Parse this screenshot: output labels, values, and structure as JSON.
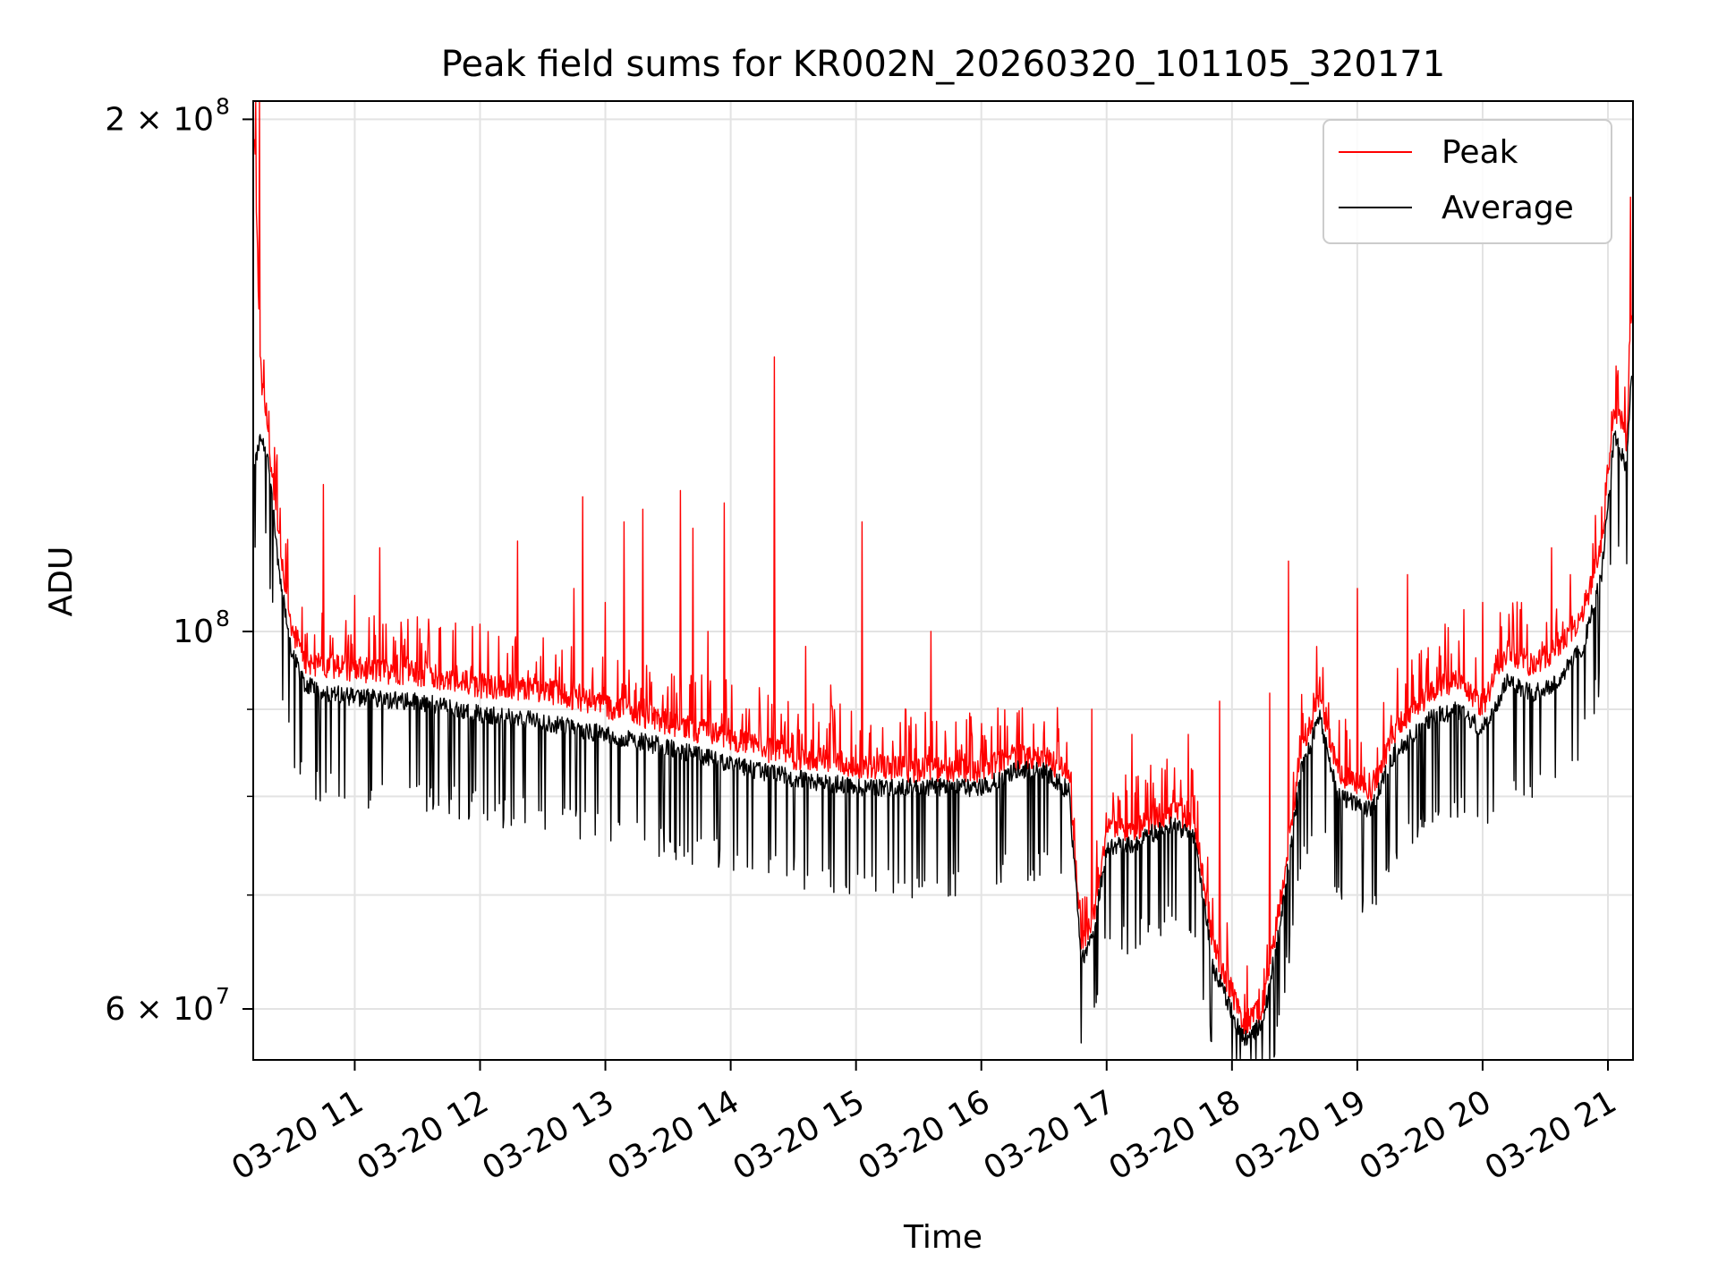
{
  "chart_data": {
    "type": "line",
    "title": "Peak field sums for KR002N_20260320_101105_320171",
    "xlabel": "Time",
    "ylabel": "ADU",
    "yscale": "log",
    "grid": true,
    "legend_position": "top-right",
    "xlim_hours": [
      10.19,
      21.2
    ],
    "ylim": [
      56000000,
      205000000
    ],
    "x_ticks": [
      {
        "hour": 11,
        "label": "03-20 11"
      },
      {
        "hour": 12,
        "label": "03-20 12"
      },
      {
        "hour": 13,
        "label": "03-20 13"
      },
      {
        "hour": 14,
        "label": "03-20 14"
      },
      {
        "hour": 15,
        "label": "03-20 15"
      },
      {
        "hour": 16,
        "label": "03-20 16"
      },
      {
        "hour": 17,
        "label": "03-20 17"
      },
      {
        "hour": 18,
        "label": "03-20 18"
      },
      {
        "hour": 19,
        "label": "03-20 19"
      },
      {
        "hour": 20,
        "label": "03-20 20"
      },
      {
        "hour": 21,
        "label": "03-20 21"
      }
    ],
    "y_major_ticks": [
      {
        "value": 60000000,
        "base": "6 × 10",
        "exp": "7"
      },
      {
        "value": 100000000,
        "base": "10",
        "exp": "8"
      },
      {
        "value": 200000000,
        "base": "2 × 10",
        "exp": "8"
      }
    ],
    "y_minor_ticks": [
      70000000,
      80000000,
      90000000
    ],
    "series": [
      {
        "name": "Peak",
        "color": "#ff0000",
        "baseline": [
          [
            10.2,
            195000000
          ],
          [
            10.25,
            140000000
          ],
          [
            10.3,
            132000000
          ],
          [
            10.4,
            112000000
          ],
          [
            10.5,
            100000000
          ],
          [
            10.6,
            95500000
          ],
          [
            10.8,
            95000000
          ],
          [
            11.0,
            94500000
          ],
          [
            11.5,
            94000000
          ],
          [
            12.0,
            92500000
          ],
          [
            12.5,
            92000000
          ],
          [
            13.0,
            90000000
          ],
          [
            13.5,
            88000000
          ],
          [
            14.0,
            86000000
          ],
          [
            14.5,
            84000000
          ],
          [
            15.0,
            83000000
          ],
          [
            15.5,
            82500000
          ],
          [
            16.0,
            82500000
          ],
          [
            16.3,
            84000000
          ],
          [
            16.5,
            84000000
          ],
          [
            16.7,
            82000000
          ],
          [
            16.8,
            65000000
          ],
          [
            16.9,
            68000000
          ],
          [
            17.0,
            76000000
          ],
          [
            17.2,
            76000000
          ],
          [
            17.5,
            78000000
          ],
          [
            17.7,
            77000000
          ],
          [
            17.85,
            65000000
          ],
          [
            18.1,
            58500000
          ],
          [
            18.25,
            60000000
          ],
          [
            18.4,
            70000000
          ],
          [
            18.55,
            85000000
          ],
          [
            18.7,
            91000000
          ],
          [
            18.85,
            82000000
          ],
          [
            19.1,
            80000000
          ],
          [
            19.3,
            87000000
          ],
          [
            19.6,
            92000000
          ],
          [
            19.8,
            93000000
          ],
          [
            20.0,
            90000000
          ],
          [
            20.2,
            97000000
          ],
          [
            20.4,
            95000000
          ],
          [
            20.6,
            97000000
          ],
          [
            20.8,
            102000000
          ],
          [
            20.95,
            112000000
          ],
          [
            21.05,
            135000000
          ],
          [
            21.1,
            132000000
          ],
          [
            21.15,
            128000000
          ],
          [
            21.18,
            150000000
          ]
        ],
        "spikes": [
          [
            10.21,
            210000000
          ],
          [
            10.24,
            205000000
          ],
          [
            10.38,
            127000000
          ],
          [
            10.75,
            122000000
          ],
          [
            11.0,
            105000000
          ],
          [
            11.2,
            112000000
          ],
          [
            11.5,
            102000000
          ],
          [
            12.0,
            101000000
          ],
          [
            12.3,
            113000000
          ],
          [
            12.75,
            106000000
          ],
          [
            12.82,
            120000000
          ],
          [
            13.0,
            104000000
          ],
          [
            13.15,
            116000000
          ],
          [
            13.3,
            118000000
          ],
          [
            13.6,
            121000000
          ],
          [
            13.7,
            115000000
          ],
          [
            13.82,
            100000000
          ],
          [
            13.95,
            119000000
          ],
          [
            14.15,
            90000000
          ],
          [
            14.35,
            145000000
          ],
          [
            14.6,
            98000000
          ],
          [
            14.8,
            93000000
          ],
          [
            15.05,
            116000000
          ],
          [
            15.4,
            90000000
          ],
          [
            15.6,
            100000000
          ],
          [
            16.15,
            88000000
          ],
          [
            16.5,
            88500000
          ],
          [
            16.88,
            90000000
          ],
          [
            17.2,
            87000000
          ],
          [
            17.65,
            87000000
          ],
          [
            17.9,
            91000000
          ],
          [
            18.3,
            92000000
          ],
          [
            18.45,
            110000000
          ],
          [
            18.7,
            94000000
          ],
          [
            19.0,
            106000000
          ],
          [
            19.4,
            108000000
          ],
          [
            19.7,
            101000000
          ],
          [
            19.85,
            103000000
          ],
          [
            20.0,
            104000000
          ],
          [
            20.3,
            103000000
          ],
          [
            20.55,
            112000000
          ],
          [
            20.7,
            108000000
          ],
          [
            20.9,
            117000000
          ],
          [
            21.18,
            180000000
          ]
        ]
      },
      {
        "name": "Average",
        "color": "#000000",
        "baseline": [
          [
            10.2,
            125000000
          ],
          [
            10.25,
            130000000
          ],
          [
            10.3,
            128000000
          ],
          [
            10.4,
            108000000
          ],
          [
            10.5,
            97000000
          ],
          [
            10.6,
            93000000
          ],
          [
            10.8,
            92000000
          ],
          [
            11.0,
            91500000
          ],
          [
            11.5,
            91000000
          ],
          [
            12.0,
            89500000
          ],
          [
            12.5,
            88500000
          ],
          [
            13.0,
            87000000
          ],
          [
            13.5,
            85500000
          ],
          [
            14.0,
            83500000
          ],
          [
            14.5,
            82000000
          ],
          [
            15.0,
            81000000
          ],
          [
            15.5,
            81000000
          ],
          [
            16.0,
            81000000
          ],
          [
            16.3,
            83000000
          ],
          [
            16.5,
            83000000
          ],
          [
            16.7,
            80500000
          ],
          [
            16.8,
            64000000
          ],
          [
            16.9,
            67000000
          ],
          [
            17.0,
            74500000
          ],
          [
            17.2,
            75000000
          ],
          [
            17.5,
            77000000
          ],
          [
            17.7,
            76000000
          ],
          [
            17.85,
            63500000
          ],
          [
            18.1,
            57500000
          ],
          [
            18.25,
            59000000
          ],
          [
            18.4,
            68500000
          ],
          [
            18.55,
            83000000
          ],
          [
            18.7,
            89000000
          ],
          [
            18.85,
            80000000
          ],
          [
            19.1,
            78500000
          ],
          [
            19.3,
            85000000
          ],
          [
            19.6,
            89000000
          ],
          [
            19.8,
            90000000
          ],
          [
            20.0,
            87500000
          ],
          [
            20.2,
            93500000
          ],
          [
            20.4,
            92000000
          ],
          [
            20.6,
            93500000
          ],
          [
            20.8,
            98000000
          ],
          [
            20.95,
            108000000
          ],
          [
            21.05,
            130000000
          ],
          [
            21.1,
            128000000
          ],
          [
            21.15,
            125000000
          ],
          [
            21.18,
            140000000
          ]
        ]
      }
    ],
    "legend": [
      {
        "label": "Peak",
        "color": "#ff0000"
      },
      {
        "label": "Average",
        "color": "#000000"
      }
    ]
  }
}
